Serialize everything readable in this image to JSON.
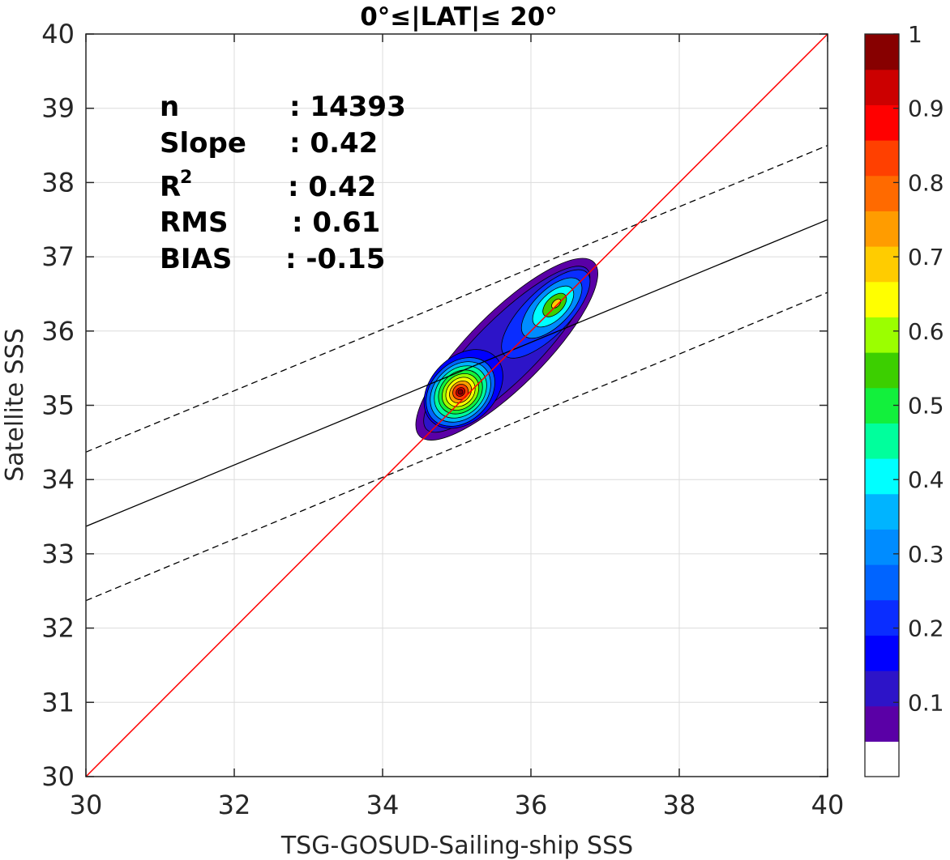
{
  "chart_data": {
    "type": "contour",
    "title": "0°≤|LAT|≤ 20°",
    "xlabel": "TSG-GOSUD-Sailing-ship SSS",
    "ylabel": "Satellite SSS",
    "xlim": [
      30,
      40
    ],
    "ylim": [
      30,
      40
    ],
    "xticks": [
      "30",
      "32",
      "34",
      "36",
      "38",
      "40"
    ],
    "yticks": [
      "30",
      "31",
      "32",
      "33",
      "34",
      "35",
      "36",
      "37",
      "38",
      "39",
      "40"
    ],
    "grid": true,
    "stats": {
      "n": {
        "label": "n",
        "value": ": 14393"
      },
      "slope": {
        "label": "Slope",
        "value": ": 0.42"
      },
      "r2": {
        "label": "R",
        "sup": "2",
        "value": ": 0.42"
      },
      "rms": {
        "label": "RMS",
        "value": ": 0.61"
      },
      "bias": {
        "label": "BIAS",
        "value": ": -0.15"
      }
    },
    "lines": {
      "one_to_one": {
        "color": "#ff0000",
        "points": [
          [
            30,
            30
          ],
          [
            40,
            40
          ]
        ]
      },
      "regression": {
        "color": "#000000",
        "points": [
          [
            30,
            33.37
          ],
          [
            40,
            37.5
          ]
        ]
      },
      "upper_bound": {
        "color": "#000000",
        "dash": true,
        "points": [
          [
            30,
            34.37
          ],
          [
            40,
            38.5
          ]
        ]
      },
      "lower_bound": {
        "color": "#000000",
        "dash": true,
        "points": [
          [
            30,
            32.37
          ],
          [
            40,
            36.52
          ]
        ]
      }
    },
    "density_peaks": [
      {
        "x": 35.05,
        "y": 35.18,
        "value": 1.0
      },
      {
        "x": 36.3,
        "y": 36.33,
        "value": 0.55
      },
      {
        "x": 35.8,
        "y": 35.85,
        "value": 0.35
      }
    ],
    "colorbar": {
      "range": [
        0,
        1
      ],
      "labels": [
        "0.1",
        "0.2",
        "0.3",
        "0.4",
        "0.5",
        "0.6",
        "0.7",
        "0.8",
        "0.9",
        "1"
      ],
      "colors": [
        "#ffffff",
        "#5a00a6",
        "#2d14c8",
        "#0000ff",
        "#0a2dff",
        "#0064ff",
        "#008cff",
        "#00b4ff",
        "#00ffff",
        "#00ff9c",
        "#12f03c",
        "#3ccf00",
        "#9bff00",
        "#ffff00",
        "#ffcc00",
        "#ff9c00",
        "#ff6a00",
        "#ff4000",
        "#ff0000",
        "#cc0000",
        "#870000"
      ]
    }
  }
}
